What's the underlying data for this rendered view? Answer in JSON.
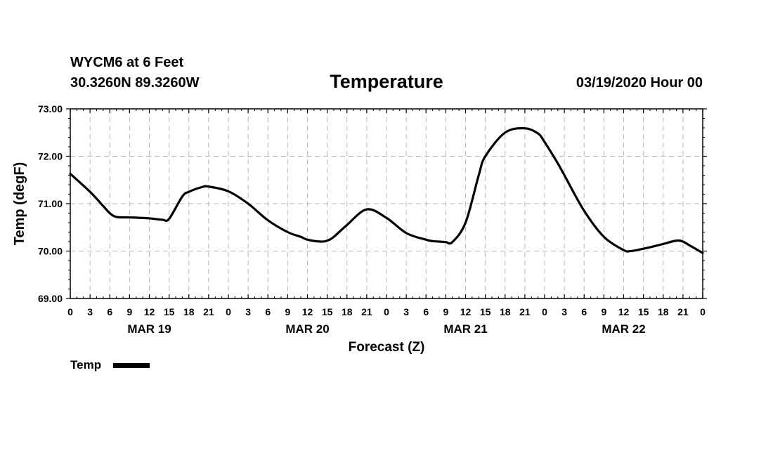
{
  "header": {
    "station": "WYCM6 at 6 Feet",
    "coords": "30.3260N 89.3260W",
    "datetime": "03/19/2020 Hour 00"
  },
  "chart_data": {
    "type": "line",
    "title": "Temperature",
    "xlabel": "Forecast (Z)",
    "ylabel": "Temp (degF)",
    "ylim": [
      69.0,
      73.0
    ],
    "yticks": [
      "69.00",
      "70.00",
      "71.00",
      "72.00",
      "73.00"
    ],
    "xlim_hours": [
      0,
      96
    ],
    "xtick_labels": [
      "0",
      "3",
      "6",
      "9",
      "12",
      "15",
      "18",
      "21",
      "0",
      "3",
      "6",
      "9",
      "12",
      "15",
      "18",
      "21",
      "0",
      "3",
      "6",
      "9",
      "12",
      "15",
      "18",
      "21",
      "0",
      "3",
      "6",
      "9",
      "12",
      "15",
      "18",
      "21",
      "0"
    ],
    "day_labels": [
      {
        "label": "MAR 19",
        "hour": 12
      },
      {
        "label": "MAR 20",
        "hour": 36
      },
      {
        "label": "MAR 21",
        "hour": 60
      },
      {
        "label": "MAR 22",
        "hour": 84
      }
    ],
    "grid": true,
    "series": [
      {
        "name": "Temp",
        "color": "#000000",
        "x": [
          0,
          3,
          5,
          6,
          7,
          9,
          12,
          14,
          15,
          17,
          18,
          20,
          21,
          24,
          27,
          30,
          33,
          35,
          36,
          38,
          39,
          40,
          42,
          45,
          48,
          51,
          54,
          55,
          56,
          57,
          58,
          60,
          62,
          63,
          66,
          69,
          71,
          72,
          74,
          75,
          78,
          81,
          84,
          85,
          86,
          87,
          88,
          90,
          92,
          93,
          94,
          96
        ],
        "values": [
          71.63,
          71.25,
          70.95,
          70.8,
          70.72,
          70.71,
          70.69,
          70.66,
          70.68,
          71.15,
          71.25,
          71.35,
          71.36,
          71.26,
          71.0,
          70.65,
          70.4,
          70.3,
          70.24,
          70.2,
          70.22,
          70.3,
          70.55,
          70.88,
          70.7,
          70.38,
          70.24,
          70.21,
          70.2,
          70.19,
          70.19,
          70.6,
          71.6,
          72.0,
          72.5,
          72.59,
          72.48,
          72.3,
          71.85,
          71.6,
          70.85,
          70.3,
          70.02,
          70.0,
          70.02,
          70.05,
          70.08,
          70.15,
          70.22,
          70.2,
          70.12,
          69.96
        ]
      }
    ]
  },
  "legend": {
    "label": "Temp",
    "color": "#000000"
  }
}
